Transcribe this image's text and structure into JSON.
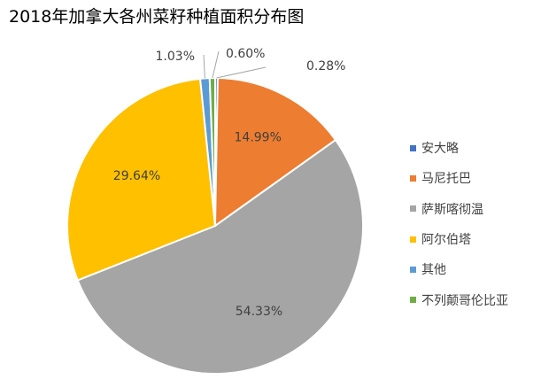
{
  "chart_data": {
    "type": "pie",
    "title": "2018年加拿大各州菜籽种植面积分布图",
    "categories": [
      "安大略",
      "马尼托巴",
      "萨斯喀彻温",
      "阿尔伯塔",
      "其他",
      "不列颠哥伦比亚"
    ],
    "values": [
      0.28,
      14.99,
      54.33,
      29.64,
      1.03,
      0.6
    ],
    "labels": [
      "0.28%",
      "14.99%",
      "54.33%",
      "29.64%",
      "1.03%",
      "0.60%"
    ],
    "colors": [
      "#4472C4",
      "#ED7D31",
      "#A5A5A5",
      "#FFC000",
      "#5B9BD5",
      "#70AD47"
    ],
    "legend_position": "right"
  }
}
